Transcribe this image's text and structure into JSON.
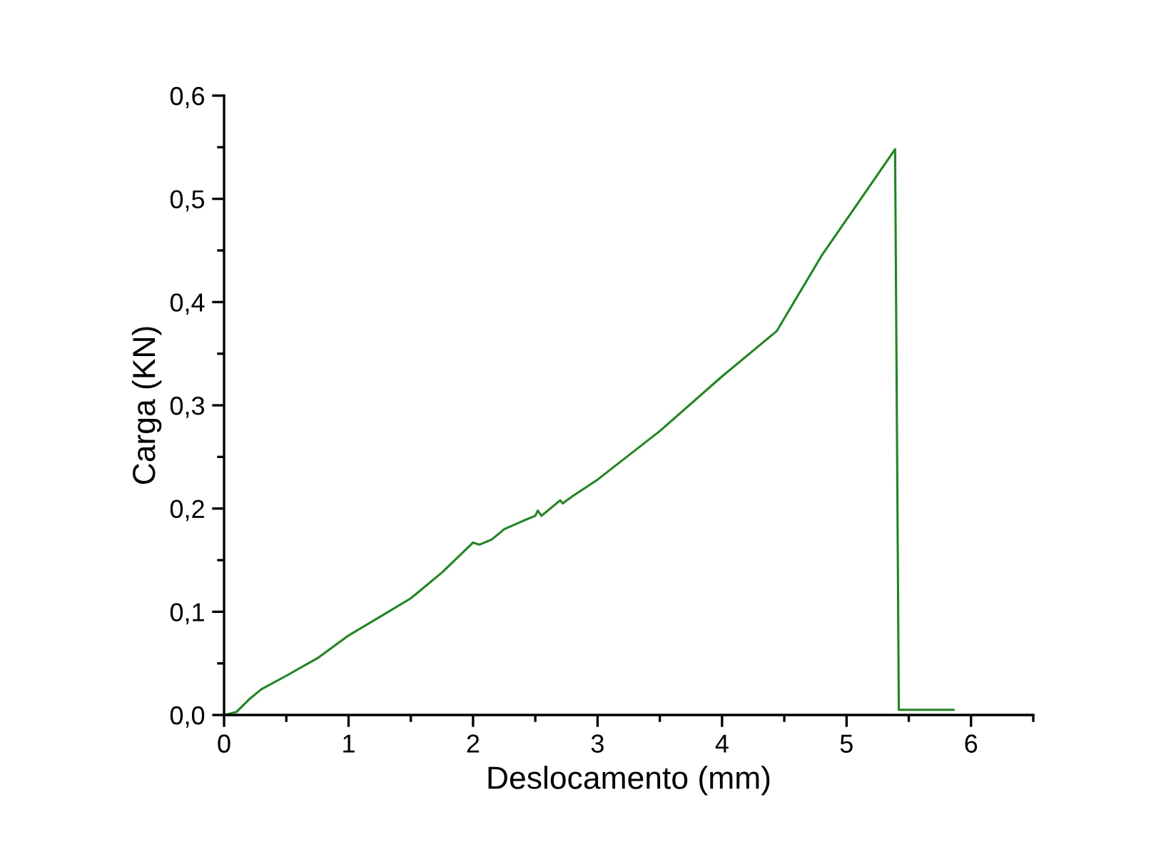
{
  "chart_data": {
    "type": "line",
    "xlabel": "Deslocamento (mm)",
    "ylabel": "Carga (KN)",
    "x": [
      0,
      0.1,
      0.2,
      0.3,
      0.5,
      0.75,
      1,
      1.25,
      1.5,
      1.75,
      2.0,
      2.05,
      2.15,
      2.25,
      2.4,
      2.5,
      2.52,
      2.55,
      2.7,
      2.72,
      2.8,
      3,
      3.5,
      4,
      4.44,
      4.8,
      5.39,
      5.42,
      5.86
    ],
    "series": [
      {
        "color": "#1a8a1a",
        "values": [
          0,
          0.003,
          0.015,
          0.025,
          0.038,
          0.055,
          0.077,
          0.095,
          0.113,
          0.138,
          0.167,
          0.165,
          0.17,
          0.18,
          0.188,
          0.193,
          0.198,
          0.193,
          0.208,
          0.205,
          0.212,
          0.228,
          0.275,
          0.328,
          0.372,
          0.445,
          0.548,
          0.005,
          0.005
        ]
      }
    ],
    "xlim": [
      0,
      6.5
    ],
    "ylim": [
      0,
      0.6
    ],
    "xticks": [
      0,
      1,
      2,
      3,
      4,
      5,
      6
    ],
    "yticks": [
      {
        "value": 0,
        "label": "0,0"
      },
      {
        "value": 0.1,
        "label": "0,1"
      },
      {
        "value": 0.2,
        "label": "0,2"
      },
      {
        "value": 0.3,
        "label": "0,3"
      },
      {
        "value": 0.4,
        "label": "0,4"
      },
      {
        "value": 0.5,
        "label": "0,5"
      },
      {
        "value": 0.6,
        "label": "0,6"
      }
    ],
    "grid": false,
    "legend": false,
    "marker": "none",
    "line_style": "solid"
  }
}
